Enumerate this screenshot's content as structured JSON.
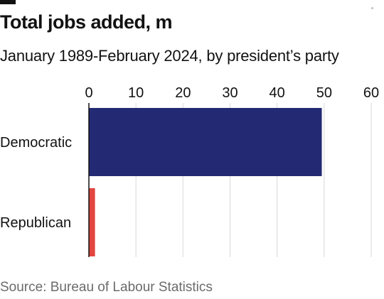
{
  "title": "Total jobs added, m",
  "subtitle": "January 1989-February 2024, by president’s party",
  "source": "Source: Bureau of Labour Statistics",
  "colors": {
    "democratic": "#232a73",
    "republican": "#e3453f",
    "grid": "#d9d9d9",
    "axis": "#121212"
  },
  "chart_data": {
    "type": "bar",
    "orientation": "horizontal",
    "title": "Total jobs added, m",
    "subtitle": "January 1989-February 2024, by president’s party",
    "categories": [
      "Democratic",
      "Republican"
    ],
    "values": [
      49.5,
      1.3
    ],
    "xlim": [
      0,
      60
    ],
    "xticks": [
      0,
      10,
      20,
      30,
      40,
      50,
      60
    ],
    "x_axis_position": "top",
    "grid": true,
    "legend": "none"
  }
}
